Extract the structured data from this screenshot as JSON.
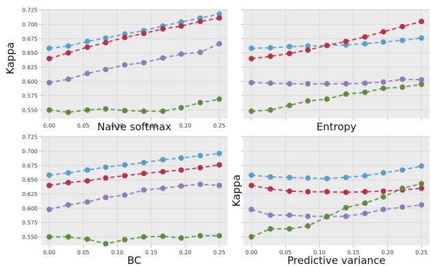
{
  "chart_data": [
    {
      "type": "line",
      "title": "",
      "xlabel": "Naive softmax",
      "ylabel": "Kappa",
      "x": [
        0.0,
        0.028,
        0.056,
        0.083,
        0.111,
        0.139,
        0.167,
        0.194,
        0.222,
        0.25
      ],
      "xticks": [
        "0.00",
        "0.05",
        "0.10",
        "0.15",
        "0.20",
        "0.25"
      ],
      "yticks": [
        "0.550",
        "0.575",
        "0.600",
        "0.625",
        "0.650",
        "0.675",
        "0.700",
        "0.725"
      ],
      "ylim": [
        0.535,
        0.727
      ],
      "xlim": [
        -0.012,
        0.262
      ],
      "grid": true,
      "series": [
        {
          "color": "#5b9ec9",
          "values": [
            0.658,
            0.662,
            0.67,
            0.676,
            0.683,
            0.689,
            0.697,
            0.704,
            0.711,
            0.718
          ]
        },
        {
          "color": "#b83250",
          "values": [
            0.64,
            0.65,
            0.66,
            0.668,
            0.677,
            0.684,
            0.692,
            0.697,
            0.705,
            0.711
          ]
        },
        {
          "color": "#8e7cb6",
          "values": [
            0.598,
            0.604,
            0.614,
            0.621,
            0.629,
            0.633,
            0.641,
            0.648,
            0.651,
            0.666
          ]
        },
        {
          "color": "#5f8c3e",
          "values": [
            0.55,
            0.546,
            0.55,
            0.552,
            0.549,
            0.548,
            0.548,
            0.554,
            0.563,
            0.569
          ]
        }
      ]
    },
    {
      "type": "line",
      "title": "",
      "xlabel": "Entropy",
      "ylabel": "",
      "x": [
        0.0,
        0.028,
        0.056,
        0.083,
        0.111,
        0.139,
        0.167,
        0.194,
        0.222,
        0.25
      ],
      "xticks": [],
      "yticks": [],
      "ylim": [
        0.535,
        0.727
      ],
      "xlim": [
        -0.012,
        0.262
      ],
      "grid": true,
      "series": [
        {
          "color": "#5b9ec9",
          "values": [
            0.658,
            0.659,
            0.661,
            0.662,
            0.663,
            0.664,
            0.666,
            0.669,
            0.672,
            0.676
          ]
        },
        {
          "color": "#b83250",
          "values": [
            0.64,
            0.644,
            0.649,
            0.655,
            0.663,
            0.67,
            0.678,
            0.687,
            0.696,
            0.705
          ]
        },
        {
          "color": "#8e7cb6",
          "values": [
            0.598,
            0.597,
            0.596,
            0.596,
            0.596,
            0.596,
            0.597,
            0.599,
            0.604,
            0.603
          ]
        },
        {
          "color": "#5f8c3e",
          "values": [
            0.548,
            0.55,
            0.558,
            0.566,
            0.569,
            0.578,
            0.581,
            0.588,
            0.59,
            0.595
          ]
        }
      ]
    },
    {
      "type": "line",
      "title": "",
      "xlabel": "BC",
      "ylabel": "",
      "x": [
        0.0,
        0.028,
        0.056,
        0.083,
        0.111,
        0.139,
        0.167,
        0.194,
        0.222,
        0.25
      ],
      "xticks": [
        "0.00",
        "0.05",
        "0.10",
        "0.15",
        "0.20",
        "0.25"
      ],
      "yticks": [
        "0.550",
        "0.575",
        "0.600",
        "0.625",
        "0.650",
        "0.675",
        "0.700",
        "0.725"
      ],
      "ylim": [
        0.535,
        0.727
      ],
      "xlim": [
        -0.012,
        0.262
      ],
      "grid": true,
      "series": [
        {
          "color": "#5b9ec9",
          "values": [
            0.658,
            0.662,
            0.667,
            0.672,
            0.676,
            0.68,
            0.685,
            0.688,
            0.692,
            0.696
          ]
        },
        {
          "color": "#b83250",
          "values": [
            0.64,
            0.645,
            0.648,
            0.653,
            0.657,
            0.661,
            0.664,
            0.667,
            0.671,
            0.676
          ]
        },
        {
          "color": "#8e7cb6",
          "values": [
            0.598,
            0.606,
            0.611,
            0.619,
            0.623,
            0.632,
            0.635,
            0.639,
            0.642,
            0.64
          ]
        },
        {
          "color": "#5f8c3e",
          "values": [
            0.55,
            0.55,
            0.546,
            0.538,
            0.545,
            0.55,
            0.551,
            0.548,
            0.552,
            0.552
          ]
        }
      ]
    },
    {
      "type": "line",
      "title": "",
      "xlabel": "Predictive variance",
      "ylabel": "Kappa",
      "x": [
        0.0,
        0.028,
        0.056,
        0.083,
        0.111,
        0.139,
        0.167,
        0.194,
        0.222,
        0.25
      ],
      "xticks": [
        "0.00",
        "0.05",
        "0.10",
        "0.15",
        "0.20",
        "0.25"
      ],
      "yticks": [],
      "ylim": [
        0.535,
        0.727
      ],
      "xlim": [
        -0.012,
        0.262
      ],
      "grid": true,
      "series": [
        {
          "color": "#5b9ec9",
          "values": [
            0.658,
            0.655,
            0.654,
            0.653,
            0.652,
            0.654,
            0.657,
            0.662,
            0.667,
            0.674
          ]
        },
        {
          "color": "#b83250",
          "values": [
            0.64,
            0.634,
            0.63,
            0.629,
            0.629,
            0.628,
            0.629,
            0.63,
            0.632,
            0.635
          ]
        },
        {
          "color": "#8e7cb6",
          "values": [
            0.598,
            0.588,
            0.588,
            0.586,
            0.586,
            0.586,
            0.591,
            0.598,
            0.602,
            0.606
          ]
        },
        {
          "color": "#5f8c3e",
          "values": [
            0.55,
            0.564,
            0.564,
            0.569,
            0.585,
            0.601,
            0.609,
            0.62,
            0.635,
            0.643
          ]
        }
      ]
    }
  ]
}
